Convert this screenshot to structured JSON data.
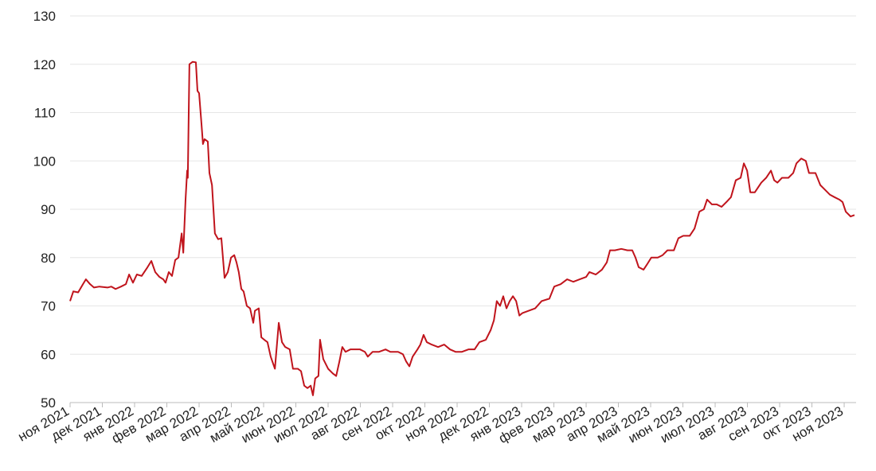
{
  "chart_data": {
    "type": "line",
    "color": "#c0141c",
    "grid": true,
    "ylim": [
      50,
      130
    ],
    "yticks": [
      50,
      60,
      70,
      80,
      90,
      100,
      110,
      120,
      130
    ],
    "xlim": [
      0,
      24.32
    ],
    "xticks": [
      {
        "value": 0,
        "label": "ноя 2021"
      },
      {
        "value": 1,
        "label": "дек 2021"
      },
      {
        "value": 2,
        "label": "янв 2022"
      },
      {
        "value": 3,
        "label": "фев 2022"
      },
      {
        "value": 4,
        "label": "мар 2022"
      },
      {
        "value": 5,
        "label": "апр 2022"
      },
      {
        "value": 6,
        "label": "май 2022"
      },
      {
        "value": 7,
        "label": "июн 2022"
      },
      {
        "value": 8,
        "label": "июл 2022"
      },
      {
        "value": 9,
        "label": "авг 2022"
      },
      {
        "value": 10,
        "label": "сен 2022"
      },
      {
        "value": 11,
        "label": "окт 2022"
      },
      {
        "value": 12,
        "label": "ноя 2022"
      },
      {
        "value": 13,
        "label": "дек 2022"
      },
      {
        "value": 14,
        "label": "янв 2023"
      },
      {
        "value": 15,
        "label": "фев 2023"
      },
      {
        "value": 16,
        "label": "мар 2023"
      },
      {
        "value": 17,
        "label": "апр 2023"
      },
      {
        "value": 18,
        "label": "май 2023"
      },
      {
        "value": 19,
        "label": "июн 2023"
      },
      {
        "value": 20,
        "label": "июл 2023"
      },
      {
        "value": 21,
        "label": "авг 2023"
      },
      {
        "value": 22,
        "label": "сен 2023"
      },
      {
        "value": 23,
        "label": "окт 2023"
      },
      {
        "value": 24,
        "label": "ноя 2023"
      }
    ],
    "x": [
      0,
      0.1,
      0.25,
      0.4,
      0.49,
      0.62,
      0.74,
      0.91,
      1.16,
      1.28,
      1.41,
      1.58,
      1.73,
      1.83,
      1.95,
      2.07,
      2.22,
      2.4,
      2.52,
      2.64,
      2.77,
      2.89,
      2.96,
      3.06,
      3.16,
      3.26,
      3.36,
      3.46,
      3.51,
      3.58,
      3.63,
      3.65,
      3.7,
      3.8,
      3.9,
      3.95,
      4.0,
      4.07,
      4.12,
      4.17,
      4.27,
      4.32,
      4.4,
      4.49,
      4.59,
      4.69,
      4.79,
      4.89,
      4.99,
      5.09,
      5.16,
      5.23,
      5.31,
      5.38,
      5.48,
      5.58,
      5.68,
      5.73,
      5.85,
      5.93,
      6.02,
      6.12,
      6.22,
      6.35,
      6.47,
      6.57,
      6.67,
      6.81,
      6.91,
      7.06,
      7.16,
      7.26,
      7.36,
      7.46,
      7.53,
      7.6,
      7.7,
      7.75,
      7.85,
      8.0,
      8.15,
      8.25,
      8.35,
      8.44,
      8.54,
      8.69,
      8.84,
      8.99,
      9.14,
      9.23,
      9.38,
      9.58,
      9.78,
      9.93,
      10.17,
      10.32,
      10.42,
      10.52,
      10.62,
      10.77,
      10.86,
      10.96,
      11.06,
      11.21,
      11.41,
      11.6,
      11.78,
      11.95,
      12.15,
      12.35,
      12.54,
      12.69,
      12.89,
      13.04,
      13.14,
      13.23,
      13.33,
      13.43,
      13.53,
      13.63,
      13.73,
      13.83,
      13.93,
      14.02,
      14.22,
      14.42,
      14.62,
      14.86,
      15.01,
      15.21,
      15.41,
      15.6,
      15.8,
      16.0,
      16.1,
      16.3,
      16.49,
      16.64,
      16.74,
      16.89,
      17.09,
      17.28,
      17.43,
      17.53,
      17.63,
      17.78,
      17.88,
      18.02,
      18.22,
      18.37,
      18.52,
      18.72,
      18.86,
      19.01,
      19.21,
      19.36,
      19.51,
      19.65,
      19.75,
      19.9,
      20.05,
      20.2,
      20.35,
      20.49,
      20.64,
      20.79,
      20.89,
      20.99,
      21.09,
      21.23,
      21.43,
      21.58,
      21.73,
      21.83,
      21.93,
      22.07,
      22.27,
      22.42,
      22.52,
      22.67,
      22.81,
      22.91,
      23.11,
      23.26,
      23.41,
      23.56,
      23.7,
      23.85,
      23.95,
      24.05,
      24.2,
      24.32
    ],
    "values": [
      71,
      73,
      72.8,
      74.5,
      75.5,
      74.5,
      73.8,
      74,
      73.8,
      74,
      73.5,
      74,
      74.5,
      76.5,
      74.8,
      76.5,
      76.2,
      78,
      79.3,
      77,
      76,
      75.5,
      74.8,
      77,
      76.2,
      79.5,
      80,
      85,
      81,
      92,
      98,
      96.5,
      120,
      120.5,
      120.4,
      114.5,
      114,
      108,
      103.5,
      104.5,
      104,
      97.5,
      95,
      85,
      83.8,
      84,
      75.8,
      77,
      80,
      80.5,
      79,
      77,
      73.5,
      73,
      70,
      69.5,
      66.5,
      69,
      69.5,
      63.5,
      63,
      62.5,
      59.5,
      57,
      66.5,
      62.5,
      61.5,
      61,
      57,
      57,
      56.5,
      53.5,
      53,
      53.5,
      51.5,
      55,
      55.5,
      63,
      59,
      57,
      56,
      55.5,
      58.5,
      61.5,
      60.5,
      61,
      61,
      61,
      60.5,
      59.5,
      60.5,
      60.5,
      61,
      60.5,
      60.5,
      60,
      58.5,
      57.5,
      59.5,
      61,
      62,
      64,
      62.5,
      62,
      61.5,
      62,
      61,
      60.5,
      60.5,
      61,
      61,
      62.5,
      63,
      65,
      67,
      71,
      70,
      72,
      69.5,
      71,
      72,
      71,
      68,
      68.5,
      69,
      69.5,
      71,
      71.5,
      74,
      74.5,
      75.5,
      75,
      75.5,
      76,
      77,
      76.5,
      77.5,
      79,
      81.5,
      81.5,
      81.8,
      81.5,
      81.5,
      80,
      78,
      77.5,
      78.5,
      80,
      80,
      80.5,
      81.5,
      81.5,
      84,
      84.5,
      84.5,
      86,
      89.5,
      90,
      92,
      91,
      91,
      90.5,
      91.5,
      92.5,
      96,
      96.5,
      99.5,
      98,
      93.5,
      93.5,
      95.5,
      96.5,
      98,
      96,
      95.5,
      96.5,
      96.5,
      97.5,
      99.5,
      100.5,
      100,
      97.5,
      97.5,
      95,
      94,
      93,
      92.5,
      92,
      91.5,
      89.5,
      88.5,
      88.8
    ]
  }
}
